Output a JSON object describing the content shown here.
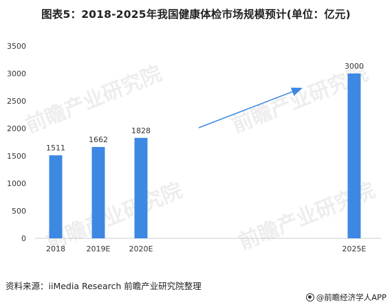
{
  "title": "图表5：2018-2025年我国健康体检市场规模预计(单位：亿元)",
  "source": "资料来源：iiMedia Research 前瞻产业研究院整理",
  "brand": "@前瞻经济学人APP",
  "watermark": "前瞻产业研究院",
  "colors": {
    "bar": "#3d88e2",
    "arrow": "#3d88e2",
    "axis": "#cccccc"
  },
  "chart_data": {
    "type": "bar",
    "categories": [
      "2018",
      "2019E",
      "2020E",
      "2025E"
    ],
    "values": [
      1511,
      1662,
      1828,
      3000
    ],
    "ylim": [
      0,
      3500
    ],
    "yticks": [
      "0",
      "500",
      "1000",
      "1500",
      "2000",
      "2500",
      "3000",
      "3500"
    ],
    "grid": false,
    "legend": "none",
    "annotation": "upward trend arrow between 2020E and 2025E"
  }
}
